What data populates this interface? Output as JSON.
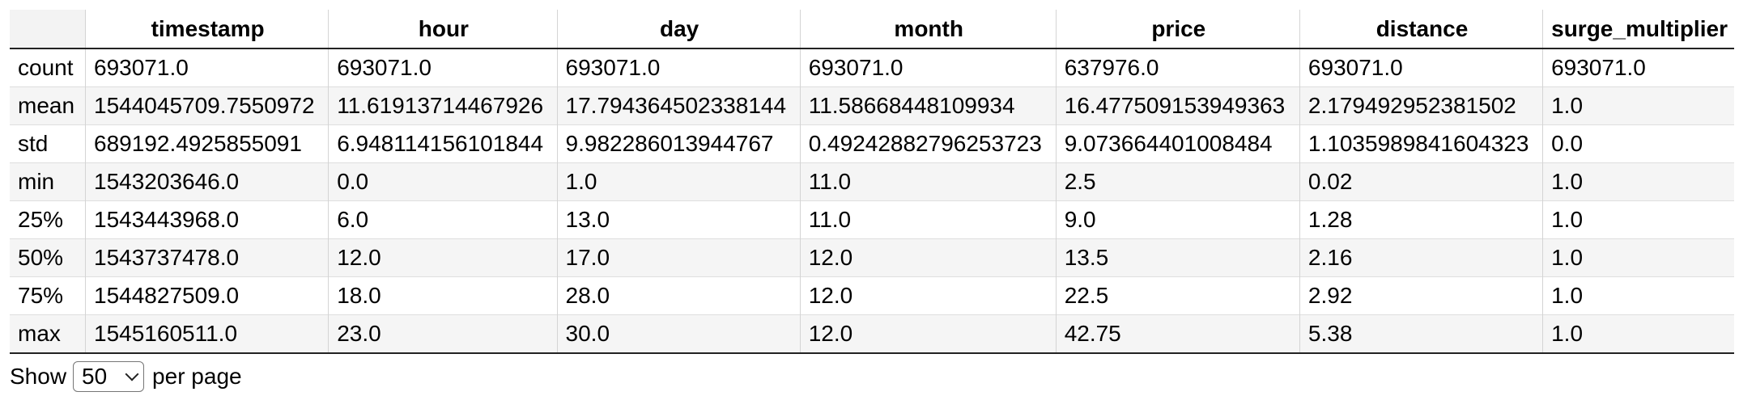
{
  "table": {
    "columns": [
      "",
      "timestamp",
      "hour",
      "day",
      "month",
      "price",
      "distance",
      "surge_multiplier"
    ],
    "rows": [
      {
        "label": "count",
        "cells": [
          "693071.0",
          "693071.0",
          "693071.0",
          "693071.0",
          "637976.0",
          "693071.0",
          "693071.0"
        ]
      },
      {
        "label": "mean",
        "cells": [
          "1544045709.7550972",
          "11.61913714467926",
          "17.794364502338144",
          "11.58668448109934",
          "16.477509153949363",
          "2.179492952381502",
          "1.0"
        ]
      },
      {
        "label": "std",
        "cells": [
          "689192.4925855091",
          "6.948114156101844",
          "9.982286013944767",
          "0.49242882796253723",
          "9.073664401008484",
          "1.1035989841604323",
          "0.0"
        ]
      },
      {
        "label": "min",
        "cells": [
          "1543203646.0",
          "0.0",
          "1.0",
          "11.0",
          "2.5",
          "0.02",
          "1.0"
        ]
      },
      {
        "label": "25%",
        "cells": [
          "1543443968.0",
          "6.0",
          "13.0",
          "11.0",
          "9.0",
          "1.28",
          "1.0"
        ]
      },
      {
        "label": "50%",
        "cells": [
          "1543737478.0",
          "12.0",
          "17.0",
          "12.0",
          "13.5",
          "2.16",
          "1.0"
        ]
      },
      {
        "label": "75%",
        "cells": [
          "1544827509.0",
          "18.0",
          "28.0",
          "12.0",
          "22.5",
          "2.92",
          "1.0"
        ]
      },
      {
        "label": "max",
        "cells": [
          "1545160511.0",
          "23.0",
          "30.0",
          "12.0",
          "42.75",
          "5.38",
          "1.0"
        ]
      }
    ]
  },
  "pagination": {
    "show_label": "Show",
    "page_size": "50",
    "per_page_label": "per page"
  }
}
